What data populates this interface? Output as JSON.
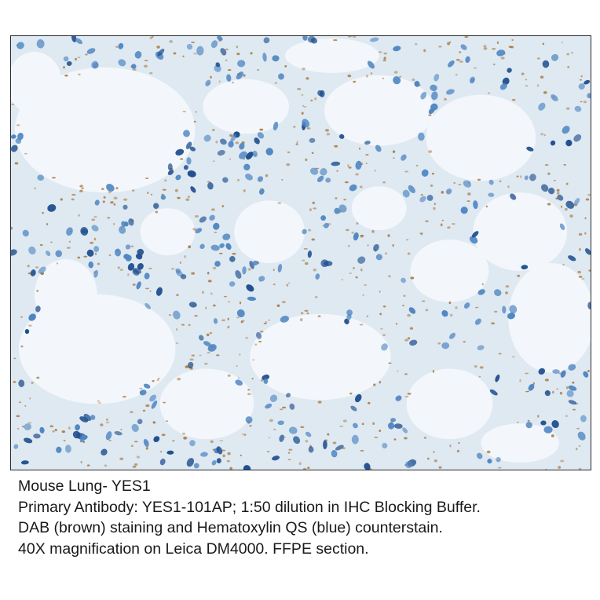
{
  "image": {
    "subject": "",
    "palette": {
      "background": "#f3f7fb",
      "tissue": "#dfe9f2",
      "nucleus_dark": "#1f4f8e",
      "nucleus_light": "#4f86c2",
      "dab_brown": "#a8773d"
    }
  },
  "caption": {
    "line1": "Mouse Lung- YES1",
    "line2": "Primary Antibody:  YES1-101AP; 1:50 dilution in IHC Blocking Buffer.",
    "line3": "DAB (brown) staining and Hematoxylin QS (blue) counterstain.",
    "line4": "40X magnification on Leica DM4000. FFPE section."
  }
}
